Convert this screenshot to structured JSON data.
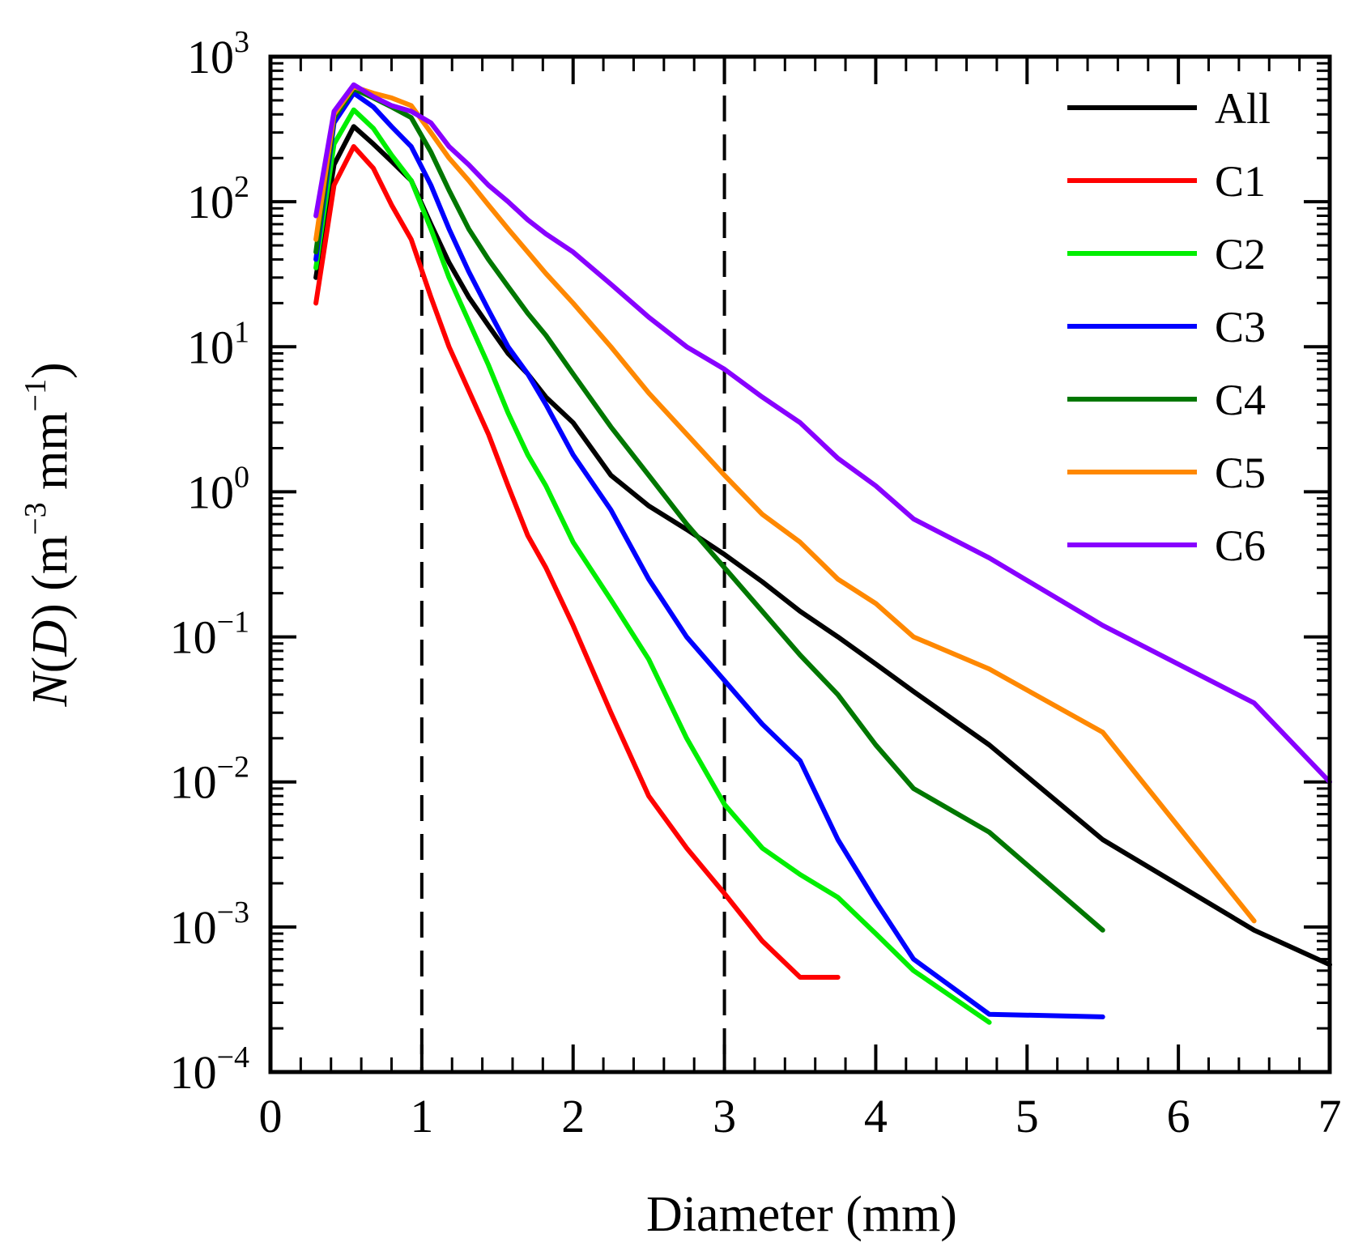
{
  "chart_data": {
    "type": "line",
    "title": "",
    "xlabel": "Diameter (mm)",
    "ylabel": "N(D) (m−3 mm−1)",
    "ylabel_parts": {
      "n": "N",
      "open": "(",
      "d": "D",
      "close": ")",
      "units_open": " (m",
      "exp1": "−3",
      "mid": " mm",
      "exp2": "−1",
      "units_close": ")"
    },
    "xlim": [
      0,
      7
    ],
    "ylim_log10": [
      -4,
      3
    ],
    "yscale": "log",
    "x_ticks": [
      "0",
      "1",
      "2",
      "3",
      "4",
      "5",
      "6",
      "7"
    ],
    "y_ticks": [
      {
        "base": "10",
        "exp": "−4"
      },
      {
        "base": "10",
        "exp": "−3"
      },
      {
        "base": "10",
        "exp": "−2"
      },
      {
        "base": "10",
        "exp": "−1"
      },
      {
        "base": "10",
        "exp": "0"
      },
      {
        "base": "10",
        "exp": "1"
      },
      {
        "base": "10",
        "exp": "2"
      },
      {
        "base": "10",
        "exp": "3"
      }
    ],
    "vlines": [
      1,
      3
    ],
    "legend_position": "top-right",
    "series": [
      {
        "name": "All",
        "color": "#000000",
        "x": [
          0.3,
          0.42,
          0.55,
          0.68,
          0.8,
          0.93,
          1.06,
          1.18,
          1.31,
          1.44,
          1.57,
          1.7,
          1.82,
          2.0,
          2.25,
          2.5,
          2.75,
          3.0,
          3.25,
          3.5,
          3.75,
          4.0,
          4.25,
          4.75,
          5.5,
          6.5,
          7.0
        ],
        "y": [
          30,
          180,
          330,
          250,
          190,
          140,
          70,
          38,
          22,
          14,
          9,
          6.5,
          4.5,
          3.0,
          1.3,
          0.8,
          0.55,
          0.37,
          0.24,
          0.15,
          0.1,
          0.065,
          0.042,
          0.018,
          0.004,
          0.00095,
          0.00055
        ]
      },
      {
        "name": "C1",
        "color": "#ff0000",
        "x": [
          0.3,
          0.42,
          0.55,
          0.68,
          0.8,
          0.93,
          1.06,
          1.18,
          1.31,
          1.44,
          1.57,
          1.7,
          1.82,
          2.0,
          2.25,
          2.5,
          2.75,
          3.0,
          3.25,
          3.5,
          3.75
        ],
        "y": [
          20,
          130,
          240,
          170,
          95,
          55,
          22,
          10,
          5.0,
          2.5,
          1.1,
          0.5,
          0.3,
          0.12,
          0.03,
          0.008,
          0.0035,
          0.0017,
          0.0008,
          0.00045,
          0.00045
        ]
      },
      {
        "name": "C2",
        "color": "#00ee00",
        "x": [
          0.3,
          0.42,
          0.55,
          0.68,
          0.8,
          0.93,
          1.06,
          1.18,
          1.31,
          1.44,
          1.57,
          1.7,
          1.82,
          2.0,
          2.25,
          2.5,
          2.75,
          3.0,
          3.25,
          3.5,
          3.75,
          4.0,
          4.25,
          4.75
        ],
        "y": [
          35,
          250,
          430,
          320,
          210,
          140,
          65,
          30,
          15,
          7.5,
          3.5,
          1.8,
          1.1,
          0.45,
          0.18,
          0.07,
          0.02,
          0.007,
          0.0035,
          0.0023,
          0.0016,
          0.0009,
          0.0005,
          0.00022
        ]
      },
      {
        "name": "C3",
        "color": "#0000ff",
        "x": [
          0.3,
          0.42,
          0.55,
          0.68,
          0.8,
          0.93,
          1.06,
          1.18,
          1.31,
          1.44,
          1.57,
          1.7,
          1.82,
          2.0,
          2.25,
          2.5,
          2.75,
          3.0,
          3.25,
          3.5,
          3.75,
          4.0,
          4.25,
          4.75,
          5.5
        ],
        "y": [
          40,
          350,
          560,
          450,
          330,
          240,
          130,
          65,
          33,
          18,
          10,
          6.5,
          4.0,
          1.8,
          0.75,
          0.25,
          0.1,
          0.05,
          0.025,
          0.014,
          0.004,
          0.0015,
          0.0006,
          0.00025,
          0.00024
        ]
      },
      {
        "name": "C4",
        "color": "#007700",
        "x": [
          0.3,
          0.42,
          0.55,
          0.68,
          0.8,
          0.93,
          1.06,
          1.18,
          1.31,
          1.44,
          1.57,
          1.7,
          1.82,
          2.0,
          2.25,
          2.5,
          2.75,
          3.0,
          3.25,
          3.5,
          3.75,
          4.0,
          4.25,
          4.75,
          5.5
        ],
        "y": [
          45,
          380,
          600,
          520,
          450,
          380,
          220,
          120,
          65,
          40,
          26,
          17,
          12,
          6.5,
          2.8,
          1.3,
          0.6,
          0.3,
          0.15,
          0.075,
          0.04,
          0.018,
          0.009,
          0.0045,
          0.00095
        ]
      },
      {
        "name": "C5",
        "color": "#ff8800",
        "x": [
          0.3,
          0.42,
          0.55,
          0.68,
          0.8,
          0.93,
          1.06,
          1.18,
          1.31,
          1.44,
          1.57,
          1.7,
          1.82,
          2.0,
          2.25,
          2.5,
          2.75,
          3.0,
          3.25,
          3.5,
          3.75,
          4.0,
          4.25,
          4.75,
          5.5,
          6.5
        ],
        "y": [
          55,
          400,
          620,
          560,
          520,
          460,
          300,
          200,
          140,
          95,
          65,
          45,
          32,
          20,
          10,
          4.8,
          2.5,
          1.3,
          0.7,
          0.45,
          0.25,
          0.17,
          0.1,
          0.06,
          0.022,
          0.0011
        ]
      },
      {
        "name": "C6",
        "color": "#8800ff",
        "x": [
          0.3,
          0.42,
          0.55,
          0.68,
          0.8,
          0.93,
          1.06,
          1.18,
          1.31,
          1.44,
          1.57,
          1.7,
          1.82,
          2.0,
          2.25,
          2.5,
          2.75,
          3.0,
          3.25,
          3.5,
          3.75,
          4.0,
          4.25,
          4.75,
          5.5,
          6.5,
          7.0
        ],
        "y": [
          80,
          420,
          640,
          530,
          460,
          420,
          350,
          240,
          180,
          130,
          100,
          75,
          60,
          45,
          27,
          16,
          10,
          7.0,
          4.5,
          3.0,
          1.7,
          1.1,
          0.65,
          0.35,
          0.12,
          0.035,
          0.01
        ]
      }
    ]
  }
}
